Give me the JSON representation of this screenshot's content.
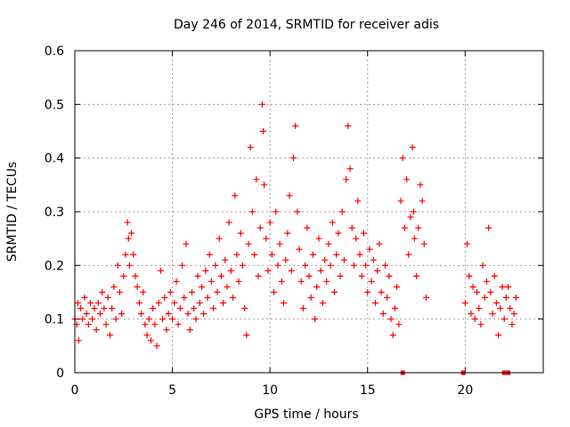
{
  "chart_data": {
    "type": "scatter",
    "title": "Day 246 of 2014, SRMTID for receiver adis",
    "xlabel": "GPS time / hours",
    "ylabel": "SRMTID / TECUs",
    "xlim": [
      0,
      24
    ],
    "ylim": [
      0,
      0.6
    ],
    "x_ticks": [
      0,
      5,
      10,
      15,
      20
    ],
    "x_tick_labels": [
      "0",
      "5",
      "10",
      "15",
      "20"
    ],
    "y_ticks": [
      0,
      0.1,
      0.2,
      0.3,
      0.4,
      0.5,
      0.6
    ],
    "y_tick_labels": [
      "0",
      "0.1",
      "0.2",
      "0.3",
      "0.4",
      "0.5",
      "0.6"
    ],
    "grid": true,
    "marker": "plus",
    "color": "#ff0000",
    "zero_markers": {
      "marker": "square",
      "x": [
        16.8,
        19.9,
        22.0,
        22.2
      ]
    },
    "series": [
      {
        "name": "SRMTID",
        "points": [
          [
            0.0,
            0.1
          ],
          [
            0.1,
            0.09
          ],
          [
            0.15,
            0.13
          ],
          [
            0.2,
            0.06
          ],
          [
            0.3,
            0.12
          ],
          [
            0.4,
            0.1
          ],
          [
            0.5,
            0.14
          ],
          [
            0.6,
            0.11
          ],
          [
            0.7,
            0.09
          ],
          [
            0.8,
            0.13
          ],
          [
            0.9,
            0.1
          ],
          [
            1.0,
            0.12
          ],
          [
            1.1,
            0.08
          ],
          [
            1.2,
            0.13
          ],
          [
            1.3,
            0.11
          ],
          [
            1.4,
            0.15
          ],
          [
            1.5,
            0.12
          ],
          [
            1.6,
            0.09
          ],
          [
            1.7,
            0.14
          ],
          [
            1.8,
            0.07
          ],
          [
            1.9,
            0.12
          ],
          [
            2.0,
            0.16
          ],
          [
            2.1,
            0.1
          ],
          [
            2.2,
            0.2
          ],
          [
            2.3,
            0.15
          ],
          [
            2.4,
            0.11
          ],
          [
            2.5,
            0.18
          ],
          [
            2.6,
            0.22
          ],
          [
            2.7,
            0.28
          ],
          [
            2.75,
            0.25
          ],
          [
            2.8,
            0.2
          ],
          [
            2.9,
            0.26
          ],
          [
            3.0,
            0.22
          ],
          [
            3.1,
            0.18
          ],
          [
            3.2,
            0.16
          ],
          [
            3.3,
            0.13
          ],
          [
            3.4,
            0.11
          ],
          [
            3.5,
            0.15
          ],
          [
            3.6,
            0.09
          ],
          [
            3.7,
            0.07
          ],
          [
            3.8,
            0.1
          ],
          [
            3.9,
            0.06
          ],
          [
            4.0,
            0.12
          ],
          [
            4.1,
            0.09
          ],
          [
            4.2,
            0.05
          ],
          [
            4.3,
            0.13
          ],
          [
            4.4,
            0.19
          ],
          [
            4.5,
            0.1
          ],
          [
            4.6,
            0.14
          ],
          [
            4.7,
            0.08
          ],
          [
            4.8,
            0.11
          ],
          [
            4.9,
            0.15
          ],
          [
            5.0,
            0.1
          ],
          [
            5.1,
            0.13
          ],
          [
            5.2,
            0.17
          ],
          [
            5.3,
            0.09
          ],
          [
            5.4,
            0.12
          ],
          [
            5.5,
            0.2
          ],
          [
            5.6,
            0.14
          ],
          [
            5.7,
            0.24
          ],
          [
            5.8,
            0.11
          ],
          [
            5.9,
            0.08
          ],
          [
            6.0,
            0.15
          ],
          [
            6.1,
            0.12
          ],
          [
            6.2,
            0.1
          ],
          [
            6.3,
            0.18
          ],
          [
            6.4,
            0.13
          ],
          [
            6.5,
            0.16
          ],
          [
            6.6,
            0.11
          ],
          [
            6.7,
            0.19
          ],
          [
            6.8,
            0.14
          ],
          [
            6.9,
            0.22
          ],
          [
            7.0,
            0.17
          ],
          [
            7.1,
            0.12
          ],
          [
            7.2,
            0.2
          ],
          [
            7.3,
            0.15
          ],
          [
            7.4,
            0.25
          ],
          [
            7.5,
            0.18
          ],
          [
            7.6,
            0.13
          ],
          [
            7.7,
            0.21
          ],
          [
            7.8,
            0.16
          ],
          [
            7.9,
            0.28
          ],
          [
            8.0,
            0.19
          ],
          [
            8.1,
            0.14
          ],
          [
            8.2,
            0.33
          ],
          [
            8.3,
            0.22
          ],
          [
            8.4,
            0.17
          ],
          [
            8.5,
            0.26
          ],
          [
            8.6,
            0.2
          ],
          [
            8.7,
            0.12
          ],
          [
            8.8,
            0.07
          ],
          [
            8.9,
            0.24
          ],
          [
            9.0,
            0.42
          ],
          [
            9.1,
            0.3
          ],
          [
            9.2,
            0.22
          ],
          [
            9.3,
            0.36
          ],
          [
            9.4,
            0.18
          ],
          [
            9.5,
            0.27
          ],
          [
            9.6,
            0.5
          ],
          [
            9.65,
            0.45
          ],
          [
            9.7,
            0.35
          ],
          [
            9.8,
            0.25
          ],
          [
            9.9,
            0.19
          ],
          [
            10.0,
            0.28
          ],
          [
            10.1,
            0.22
          ],
          [
            10.2,
            0.15
          ],
          [
            10.3,
            0.3
          ],
          [
            10.4,
            0.2
          ],
          [
            10.5,
            0.24
          ],
          [
            10.6,
            0.17
          ],
          [
            10.7,
            0.13
          ],
          [
            10.8,
            0.21
          ],
          [
            10.9,
            0.26
          ],
          [
            11.0,
            0.33
          ],
          [
            11.1,
            0.19
          ],
          [
            11.2,
            0.4
          ],
          [
            11.3,
            0.46
          ],
          [
            11.4,
            0.3
          ],
          [
            11.5,
            0.23
          ],
          [
            11.6,
            0.17
          ],
          [
            11.7,
            0.12
          ],
          [
            11.8,
            0.2
          ],
          [
            11.9,
            0.27
          ],
          [
            12.0,
            0.18
          ],
          [
            12.1,
            0.14
          ],
          [
            12.2,
            0.22
          ],
          [
            12.3,
            0.1
          ],
          [
            12.4,
            0.16
          ],
          [
            12.5,
            0.25
          ],
          [
            12.6,
            0.19
          ],
          [
            12.7,
            0.13
          ],
          [
            12.8,
            0.21
          ],
          [
            12.9,
            0.17
          ],
          [
            13.0,
            0.24
          ],
          [
            13.1,
            0.2
          ],
          [
            13.2,
            0.28
          ],
          [
            13.3,
            0.15
          ],
          [
            13.4,
            0.22
          ],
          [
            13.5,
            0.26
          ],
          [
            13.6,
            0.18
          ],
          [
            13.7,
            0.3
          ],
          [
            13.8,
            0.21
          ],
          [
            13.9,
            0.36
          ],
          [
            14.0,
            0.46
          ],
          [
            14.1,
            0.38
          ],
          [
            14.2,
            0.27
          ],
          [
            14.3,
            0.2
          ],
          [
            14.4,
            0.25
          ],
          [
            14.5,
            0.32
          ],
          [
            14.6,
            0.22
          ],
          [
            14.7,
            0.18
          ],
          [
            14.8,
            0.26
          ],
          [
            14.9,
            0.2
          ],
          [
            15.0,
            0.15
          ],
          [
            15.1,
            0.23
          ],
          [
            15.2,
            0.17
          ],
          [
            15.3,
            0.21
          ],
          [
            15.4,
            0.13
          ],
          [
            15.5,
            0.19
          ],
          [
            15.6,
            0.24
          ],
          [
            15.7,
            0.15
          ],
          [
            15.8,
            0.11
          ],
          [
            15.9,
            0.2
          ],
          [
            16.0,
            0.14
          ],
          [
            16.1,
            0.18
          ],
          [
            16.2,
            0.1
          ],
          [
            16.3,
            0.07
          ],
          [
            16.4,
            0.12
          ],
          [
            16.5,
            0.16
          ],
          [
            16.6,
            0.09
          ],
          [
            16.7,
            0.32
          ],
          [
            16.8,
            0.4
          ],
          [
            16.9,
            0.27
          ],
          [
            17.0,
            0.36
          ],
          [
            17.1,
            0.22
          ],
          [
            17.2,
            0.29
          ],
          [
            17.3,
            0.42
          ],
          [
            17.35,
            0.3
          ],
          [
            17.4,
            0.25
          ],
          [
            17.5,
            0.18
          ],
          [
            17.6,
            0.27
          ],
          [
            17.7,
            0.35
          ],
          [
            17.8,
            0.32
          ],
          [
            17.9,
            0.24
          ],
          [
            18.0,
            0.14
          ],
          [
            20.0,
            0.13
          ],
          [
            20.1,
            0.24
          ],
          [
            20.2,
            0.18
          ],
          [
            20.3,
            0.11
          ],
          [
            20.4,
            0.16
          ],
          [
            20.5,
            0.1
          ],
          [
            20.6,
            0.15
          ],
          [
            20.7,
            0.12
          ],
          [
            20.8,
            0.09
          ],
          [
            20.9,
            0.2
          ],
          [
            21.0,
            0.14
          ],
          [
            21.1,
            0.17
          ],
          [
            21.2,
            0.27
          ],
          [
            21.3,
            0.15
          ],
          [
            21.4,
            0.11
          ],
          [
            21.5,
            0.18
          ],
          [
            21.6,
            0.13
          ],
          [
            21.7,
            0.07
          ],
          [
            21.8,
            0.12
          ],
          [
            21.9,
            0.16
          ],
          [
            22.0,
            0.1
          ],
          [
            22.1,
            0.14
          ],
          [
            22.2,
            0.16
          ],
          [
            22.3,
            0.12
          ],
          [
            22.4,
            0.09
          ],
          [
            22.5,
            0.11
          ],
          [
            22.6,
            0.14
          ]
        ]
      }
    ]
  }
}
